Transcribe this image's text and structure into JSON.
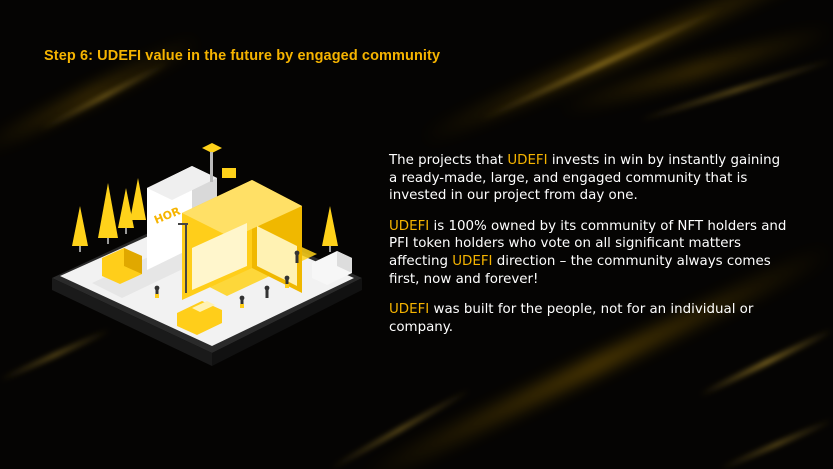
{
  "slide": {
    "title": "Step 6: UDEFI value in the future by engaged community",
    "paragraphs": [
      {
        "parts": [
          {
            "text": "The projects that ",
            "highlight": false
          },
          {
            "text": "UDEFI",
            "highlight": true
          },
          {
            "text": " invests in win by instantly gaining a ready-made, large, and engaged community that is invested in our project from day one.",
            "highlight": false
          }
        ]
      },
      {
        "parts": [
          {
            "text": "UDEFI",
            "highlight": true
          },
          {
            "text": " is 100% owned by its community of NFT holders and PFI token holders who vote on all significant matters affecting ",
            "highlight": false
          },
          {
            "text": "UDEFI",
            "highlight": true
          },
          {
            "text": " direction – the community always comes first, now and forever!",
            "highlight": false
          }
        ]
      },
      {
        "parts": [
          {
            "text": "UDEFI",
            "highlight": true
          },
          {
            "text": " was built for the people, not for an individual or company.",
            "highlight": false
          }
        ]
      }
    ],
    "illustration": {
      "sign_text": "HOR"
    }
  },
  "colors": {
    "background": "#050403",
    "accent": "#f6b400",
    "text": "#ffffff"
  }
}
